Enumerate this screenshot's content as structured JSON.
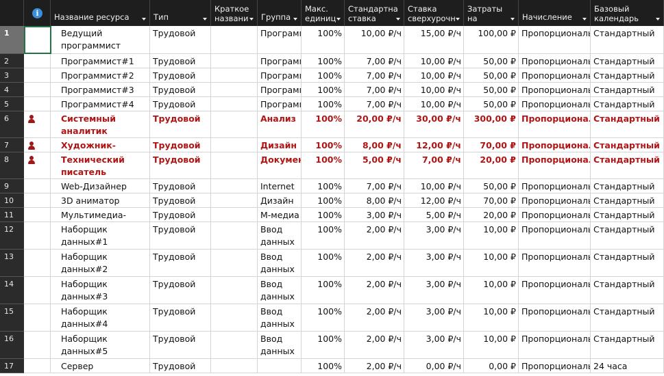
{
  "columns": [
    {
      "key": "ind",
      "label": ""
    },
    {
      "key": "name",
      "label": "Название ресурса"
    },
    {
      "key": "type",
      "label": "Тип"
    },
    {
      "key": "short",
      "label": "Краткое\nназвани"
    },
    {
      "key": "group",
      "label": "Группа"
    },
    {
      "key": "max",
      "label": "Макс.\nединиц"
    },
    {
      "key": "std",
      "label": "Стандартна\nставка"
    },
    {
      "key": "ovt",
      "label": "Ставка\nсверхурочн"
    },
    {
      "key": "cost",
      "label": "Затраты\nна"
    },
    {
      "key": "accrue",
      "label": "Начисление"
    },
    {
      "key": "cal",
      "label": "Базовый\nкалендарь"
    }
  ],
  "rows": [
    {
      "id": "1",
      "name": "Ведущий программист",
      "type": "Трудовой",
      "short": "",
      "group": "Программисты",
      "max": "100%",
      "std": "10,00 ₽/ч",
      "ovt": "15,00 ₽/ч",
      "cost": "100,00 ₽",
      "accrue": "Пропорциональное",
      "cal": "Стандартный",
      "over": false
    },
    {
      "id": "2",
      "name": "Программист#1",
      "type": "Трудовой",
      "short": "",
      "group": "Программисты",
      "max": "100%",
      "std": "7,00 ₽/ч",
      "ovt": "10,00 ₽/ч",
      "cost": "50,00 ₽",
      "accrue": "Пропорциональное",
      "cal": "Стандартный",
      "over": false
    },
    {
      "id": "3",
      "name": "Программист#2",
      "type": "Трудовой",
      "short": "",
      "group": "Программисты",
      "max": "100%",
      "std": "7,00 ₽/ч",
      "ovt": "10,00 ₽/ч",
      "cost": "50,00 ₽",
      "accrue": "Пропорциональное",
      "cal": "Стандартный",
      "over": false
    },
    {
      "id": "4",
      "name": "Программист#3",
      "type": "Трудовой",
      "short": "",
      "group": "Программисты",
      "max": "100%",
      "std": "7,00 ₽/ч",
      "ovt": "10,00 ₽/ч",
      "cost": "50,00 ₽",
      "accrue": "Пропорциональное",
      "cal": "Стандартный",
      "over": false
    },
    {
      "id": "5",
      "name": "Программист#4",
      "type": "Трудовой",
      "short": "",
      "group": "Программисты",
      "max": "100%",
      "std": "7,00 ₽/ч",
      "ovt": "10,00 ₽/ч",
      "cost": "50,00 ₽",
      "accrue": "Пропорциональное",
      "cal": "Стандартный",
      "over": false
    },
    {
      "id": "6",
      "name": "Системный аналитик",
      "type": "Трудовой",
      "short": "",
      "group": "Анализ",
      "max": "100%",
      "std": "20,00 ₽/ч",
      "ovt": "30,00 ₽/ч",
      "cost": "300,00 ₽",
      "accrue": "Пропорциональное",
      "cal": "Стандартный",
      "over": true
    },
    {
      "id": "7",
      "name": "Художник-Дизайнер",
      "type": "Трудовой",
      "short": "",
      "group": "Дизайн",
      "max": "100%",
      "std": "8,00 ₽/ч",
      "ovt": "12,00 ₽/ч",
      "cost": "70,00 ₽",
      "accrue": "Пропорциональное",
      "cal": "Стандартный",
      "over": true
    },
    {
      "id": "8",
      "name": "Технический писатель",
      "type": "Трудовой",
      "short": "",
      "group": "Документация",
      "max": "100%",
      "std": "5,00 ₽/ч",
      "ovt": "7,00 ₽/ч",
      "cost": "20,00 ₽",
      "accrue": "Пропорциональное",
      "cal": "Стандартный",
      "over": true
    },
    {
      "id": "9",
      "name": "Web-Дизайнер",
      "type": "Трудовой",
      "short": "",
      "group": "Internet",
      "max": "100%",
      "std": "7,00 ₽/ч",
      "ovt": "10,00 ₽/ч",
      "cost": "50,00 ₽",
      "accrue": "Пропорциональное",
      "cal": "Стандартный",
      "over": false
    },
    {
      "id": "10",
      "name": "3D аниматор",
      "type": "Трудовой",
      "short": "",
      "group": "Дизайн",
      "max": "100%",
      "std": "8,00 ₽/ч",
      "ovt": "12,00 ₽/ч",
      "cost": "70,00 ₽",
      "accrue": "Пропорциональное",
      "cal": "Стандартный",
      "over": false
    },
    {
      "id": "11",
      "name": "Мультимедиа-корректор",
      "type": "Трудовой",
      "short": "",
      "group": "М-медиа",
      "max": "100%",
      "std": "3,00 ₽/ч",
      "ovt": "5,00 ₽/ч",
      "cost": "20,00 ₽",
      "accrue": "Пропорциональное",
      "cal": "Стандартный",
      "over": false
    },
    {
      "id": "12",
      "name": "Наборщик данных#1",
      "type": "Трудовой",
      "short": "",
      "group": "Ввод данных",
      "max": "100%",
      "std": "2,00 ₽/ч",
      "ovt": "3,00 ₽/ч",
      "cost": "10,00 ₽",
      "accrue": "Пропорциональное",
      "cal": "Стандартный",
      "over": false
    },
    {
      "id": "13",
      "name": "Наборщик данных#2",
      "type": "Трудовой",
      "short": "",
      "group": "Ввод данных",
      "max": "100%",
      "std": "2,00 ₽/ч",
      "ovt": "3,00 ₽/ч",
      "cost": "10,00 ₽",
      "accrue": "Пропорциональное",
      "cal": "Стандартный",
      "over": false
    },
    {
      "id": "14",
      "name": "Наборщик данных#3",
      "type": "Трудовой",
      "short": "",
      "group": "Ввод данных",
      "max": "100%",
      "std": "2,00 ₽/ч",
      "ovt": "3,00 ₽/ч",
      "cost": "10,00 ₽",
      "accrue": "Пропорциональное",
      "cal": "Стандартный",
      "over": false
    },
    {
      "id": "15",
      "name": "Наборщик данных#4",
      "type": "Трудовой",
      "short": "",
      "group": "Ввод данных",
      "max": "100%",
      "std": "2,00 ₽/ч",
      "ovt": "3,00 ₽/ч",
      "cost": "10,00 ₽",
      "accrue": "Пропорциональное",
      "cal": "Стандартный",
      "over": false
    },
    {
      "id": "16",
      "name": "Наборщик данных#5",
      "type": "Трудовой",
      "short": "",
      "group": "Ввод данных",
      "max": "100%",
      "std": "2,00 ₽/ч",
      "ovt": "3,00 ₽/ч",
      "cost": "10,00 ₽",
      "accrue": "Пропорциональное",
      "cal": "Стандартный",
      "over": false
    },
    {
      "id": "17",
      "name": "Сервер",
      "type": "Трудовой",
      "short": "",
      "group": "",
      "max": "100%",
      "std": "2,00 ₽/ч",
      "ovt": "0,00 ₽/ч",
      "cost": "0,00 ₽",
      "accrue": "Пропорциональное",
      "cal": "24 часа",
      "over": false
    }
  ],
  "colors": {
    "header_bg": "#1e1e1e",
    "rowheader_bg": "#2b2b2b",
    "overallocated": "#b01515",
    "selection": "#217346"
  },
  "icons": {
    "indicator_header": "info-icon",
    "overallocated": "person-icon"
  }
}
